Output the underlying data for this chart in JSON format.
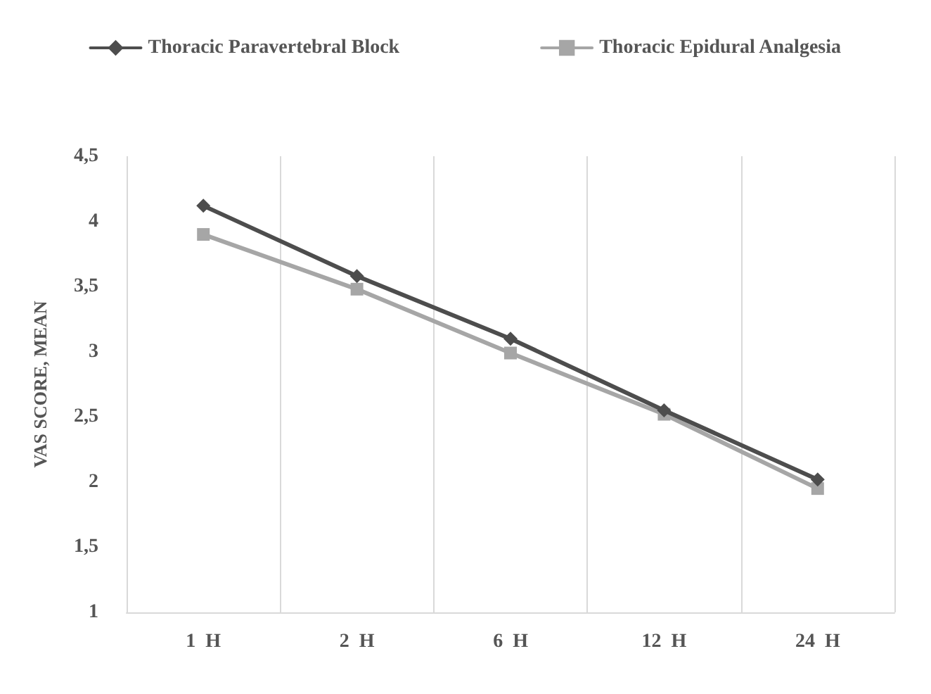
{
  "chart_data": {
    "type": "line",
    "ylabel": "VAS SCORE, MEAN",
    "categories": [
      "1  H",
      "2  H",
      "6  H",
      "12  H",
      "24  H"
    ],
    "series": [
      {
        "name": "Thoracic Paravertebral Block",
        "color": "#4d4d4d",
        "marker": "diamond",
        "values": [
          4.12,
          3.58,
          3.1,
          2.55,
          2.02
        ]
      },
      {
        "name": "Thoracic Epidural Analgesia",
        "color": "#a6a6a6",
        "marker": "square",
        "values": [
          3.9,
          3.48,
          2.99,
          2.52,
          1.95
        ]
      }
    ],
    "ylim": [
      1,
      4.5
    ],
    "yticks": [
      1,
      {
        "value": 1.5,
        "label": "1,5"
      },
      2,
      {
        "value": 2.5,
        "label": "2,5"
      },
      3,
      {
        "value": 3.5,
        "label": "3,5"
      },
      4,
      {
        "value": 4.5,
        "label": "4,5"
      }
    ],
    "grid": "x",
    "legend": "top",
    "line_style": "solid"
  }
}
